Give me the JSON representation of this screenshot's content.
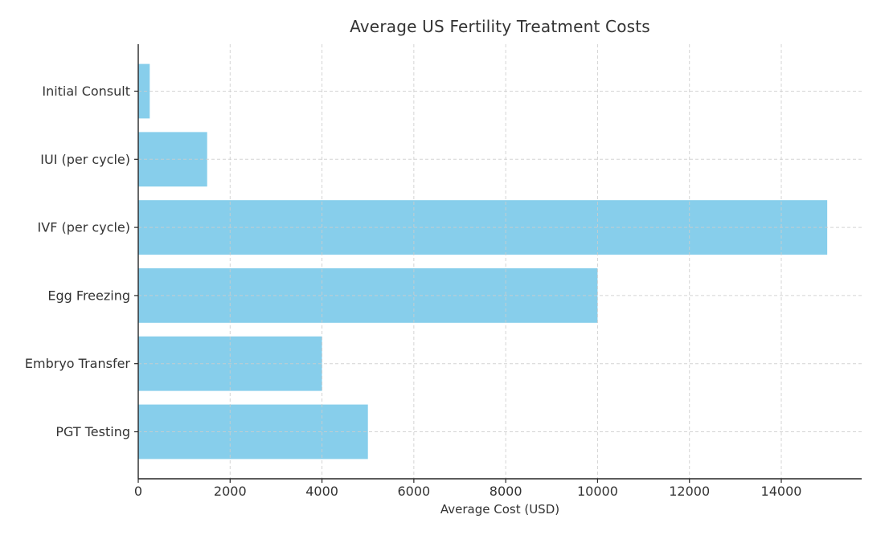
{
  "chart_data": {
    "type": "bar",
    "orientation": "horizontal",
    "title": "Average US Fertility Treatment Costs",
    "xlabel": "Average Cost (USD)",
    "ylabel": "",
    "categories": [
      "Initial Consult",
      "IUI (per cycle)",
      "IVF (per cycle)",
      "Egg Freezing",
      "Embryo Transfer",
      "PGT Testing"
    ],
    "values": [
      250,
      1500,
      15000,
      10000,
      4000,
      5000
    ],
    "xticks": [
      0,
      2000,
      4000,
      6000,
      8000,
      10000,
      12000,
      14000
    ],
    "xlim": [
      0,
      15750
    ],
    "grid": true,
    "grid_style": "dashed",
    "legend": "none",
    "colors": {
      "bar": "#87CEEB",
      "grid": "#cccccc",
      "axis": "#262626",
      "text": "#333333",
      "background": "#ffffff"
    }
  }
}
